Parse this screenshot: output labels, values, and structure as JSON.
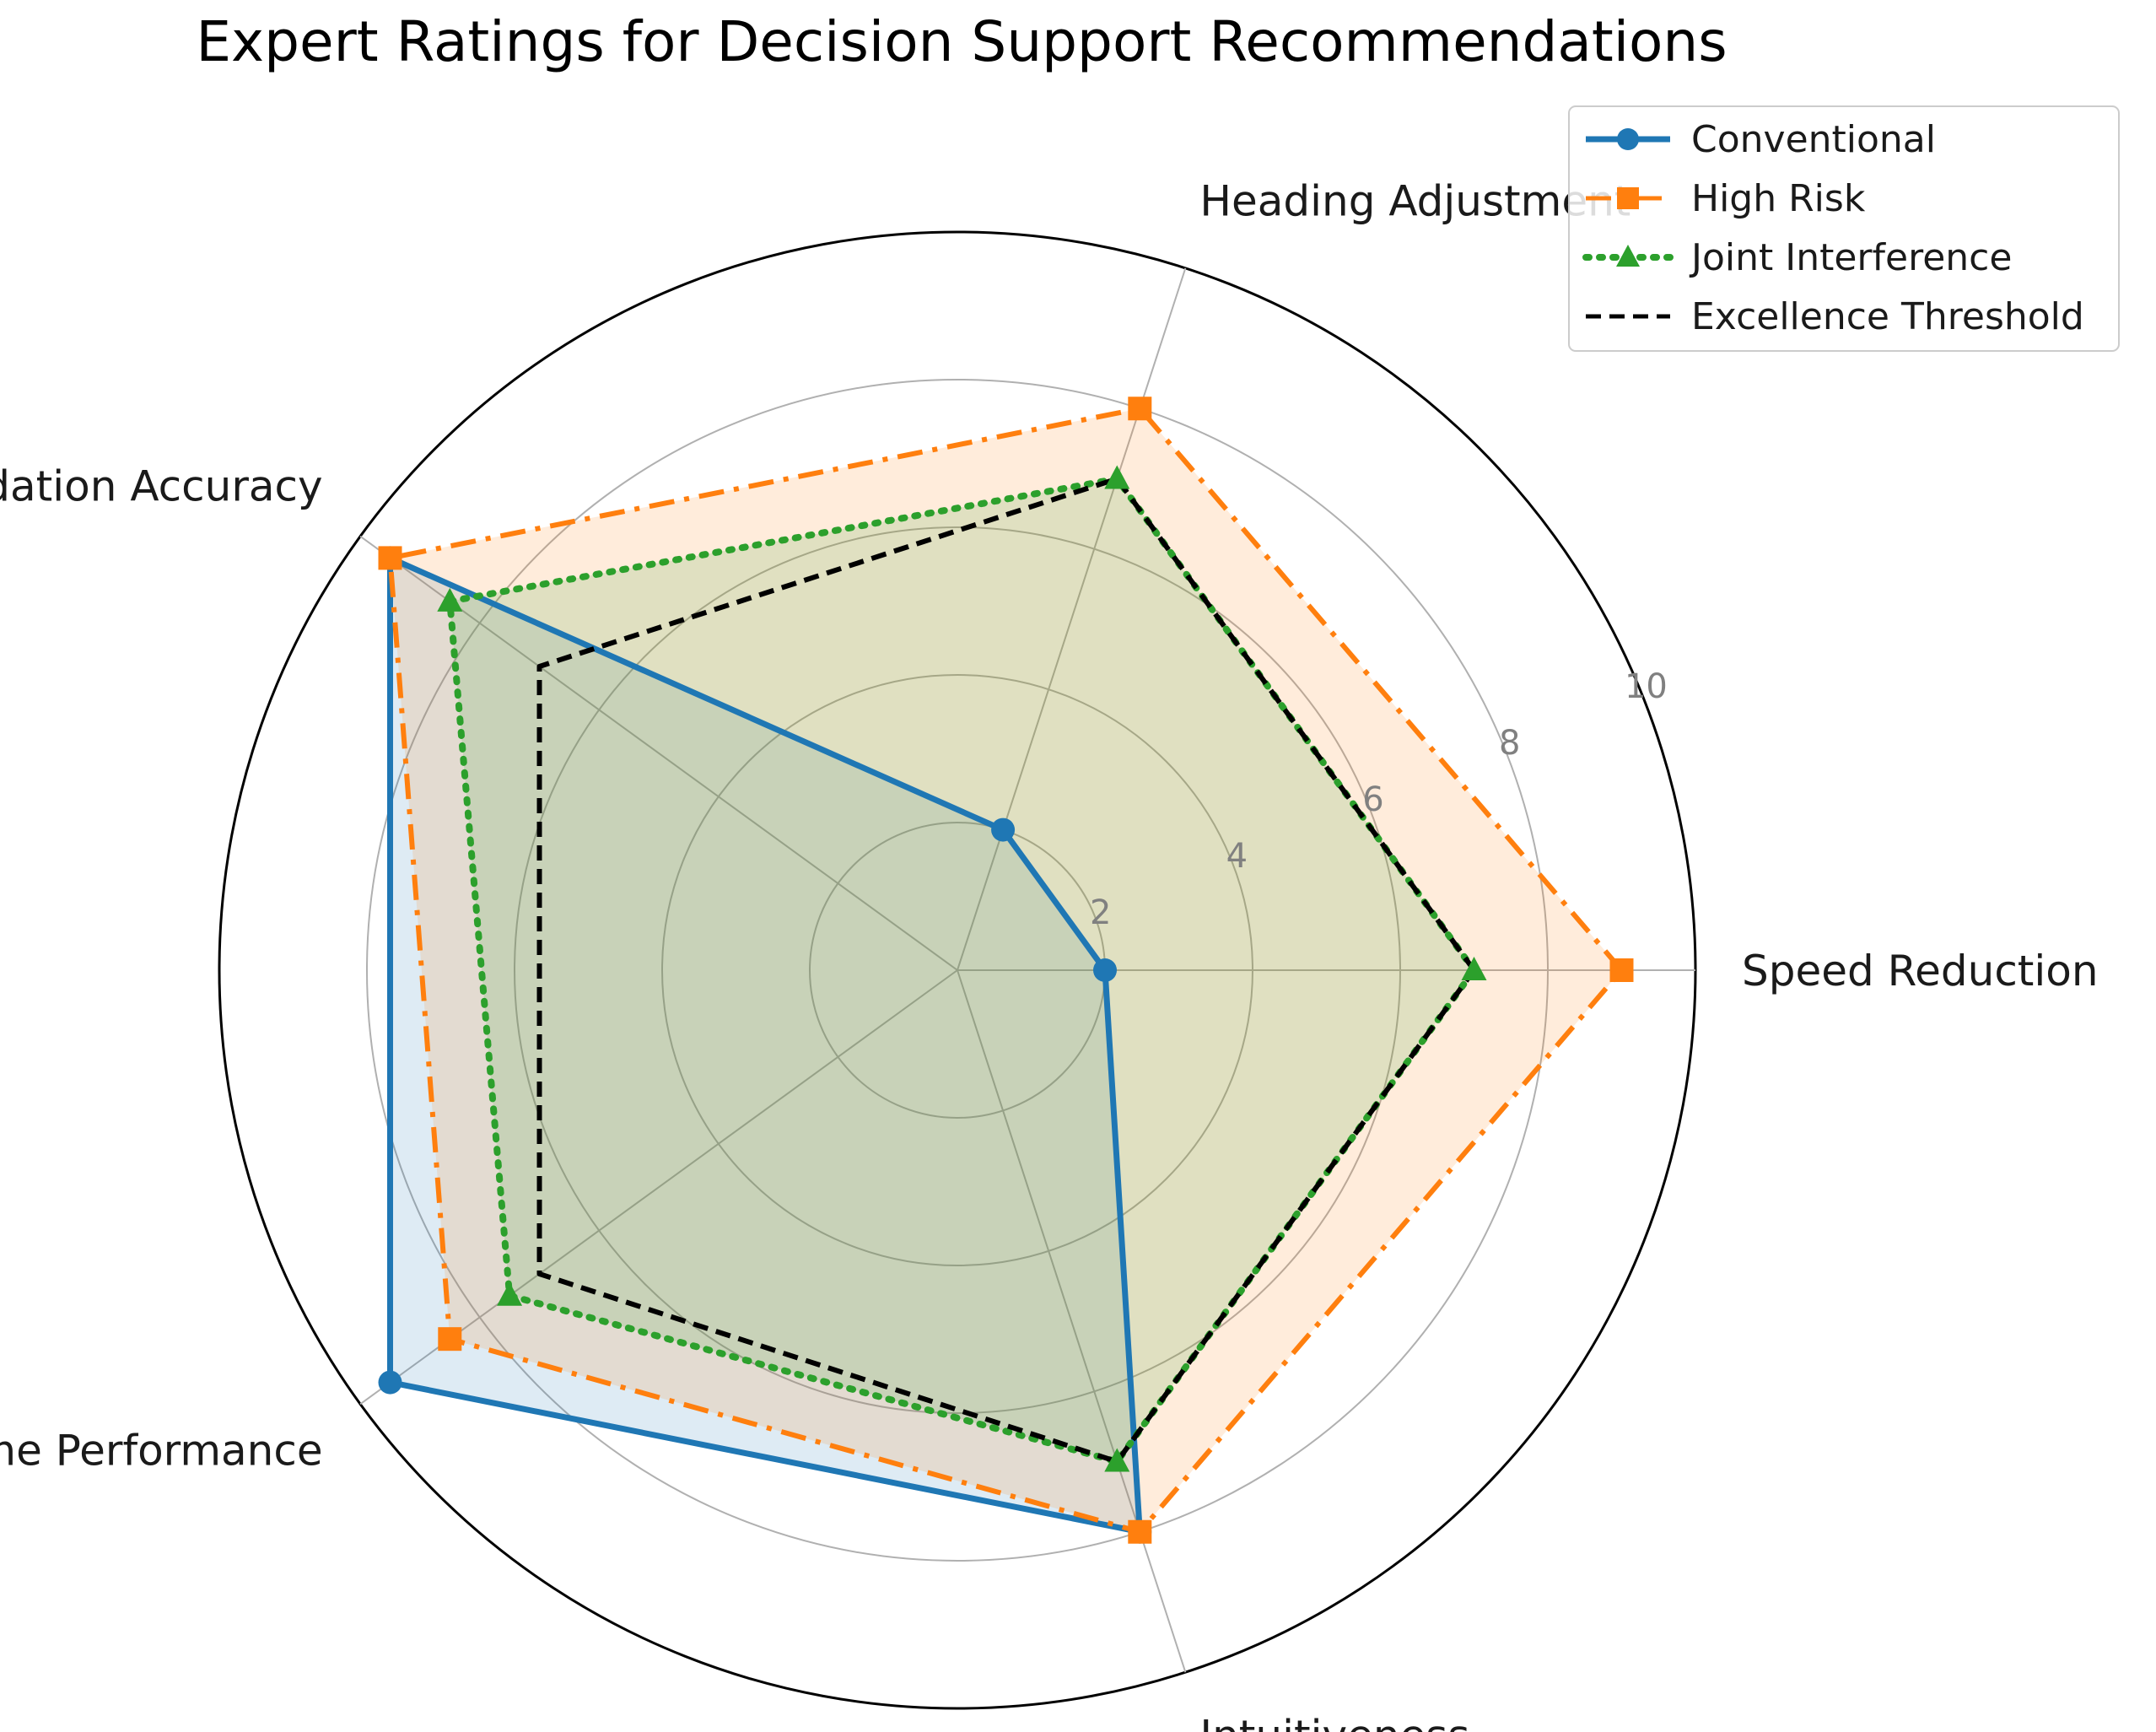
{
  "chart_data": {
    "type": "radar",
    "title": "Expert Ratings for Decision Support Recommendations",
    "categories": [
      "Speed Reduction",
      "Heading Adjustment",
      "Recommendation Accuracy",
      "Real-Time Performance",
      "Intuitiveness"
    ],
    "rlim": [
      0,
      10
    ],
    "rticks": [
      2,
      4,
      6,
      8,
      10
    ],
    "rtick_labels": [
      "2",
      "4",
      "6",
      "8",
      "10"
    ],
    "grid": true,
    "legend_position": "top-right",
    "series": [
      {
        "name": "Conventional",
        "values": [
          2,
          2,
          9.5,
          9.5,
          8
        ],
        "color": "#1f77b4",
        "line_style": "solid",
        "marker": "circle",
        "filled": true
      },
      {
        "name": "High Risk",
        "values": [
          9,
          8,
          9.5,
          8.5,
          8
        ],
        "color": "#ff7f0e",
        "line_style": "dashdot",
        "marker": "square",
        "filled": true
      },
      {
        "name": "Joint Interference",
        "values": [
          7,
          7,
          8.5,
          7.5,
          7
        ],
        "color": "#2ca02c",
        "line_style": "dotted",
        "marker": "triangle",
        "filled": true
      },
      {
        "name": "Excellence Threshold",
        "values": [
          7,
          7,
          7,
          7,
          7
        ],
        "color": "#000000",
        "line_style": "dashed",
        "marker": "none",
        "filled": false
      }
    ]
  }
}
